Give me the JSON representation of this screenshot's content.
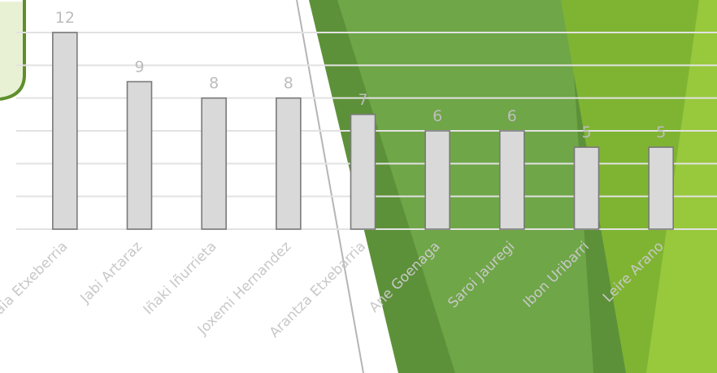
{
  "colors": {
    "green_dark": "#5d9139",
    "green_mid": "#71a84a",
    "green_bright": "#7fb433",
    "green_light": "#98c83c",
    "green_pale": "#e6f0cf",
    "bar_fill": "#d9d9d9",
    "bar_stroke": "#7a7a7a",
    "label": "#bdbdbd"
  },
  "chart_data": {
    "type": "bar",
    "title": "",
    "xlabel": "",
    "ylabel": "",
    "ylim": [
      0,
      12
    ],
    "grid": true,
    "y_axis_visible": false,
    "categories": [
      "Amaia Etxeberria",
      "Jabi Artaraz",
      "Iñaki Iñurrieta",
      "Joxemi Hernandez",
      "Arantza Etxebarria",
      "Ane Goenaga",
      "Saroi Jauregi",
      "Ibon Uribarri",
      "Leire Arano"
    ],
    "values": [
      12,
      9,
      8,
      8,
      7,
      6,
      6,
      5,
      5
    ],
    "value_labels": [
      "12",
      "9",
      "8",
      "8",
      "7",
      "6",
      "6",
      "5",
      "5"
    ]
  }
}
